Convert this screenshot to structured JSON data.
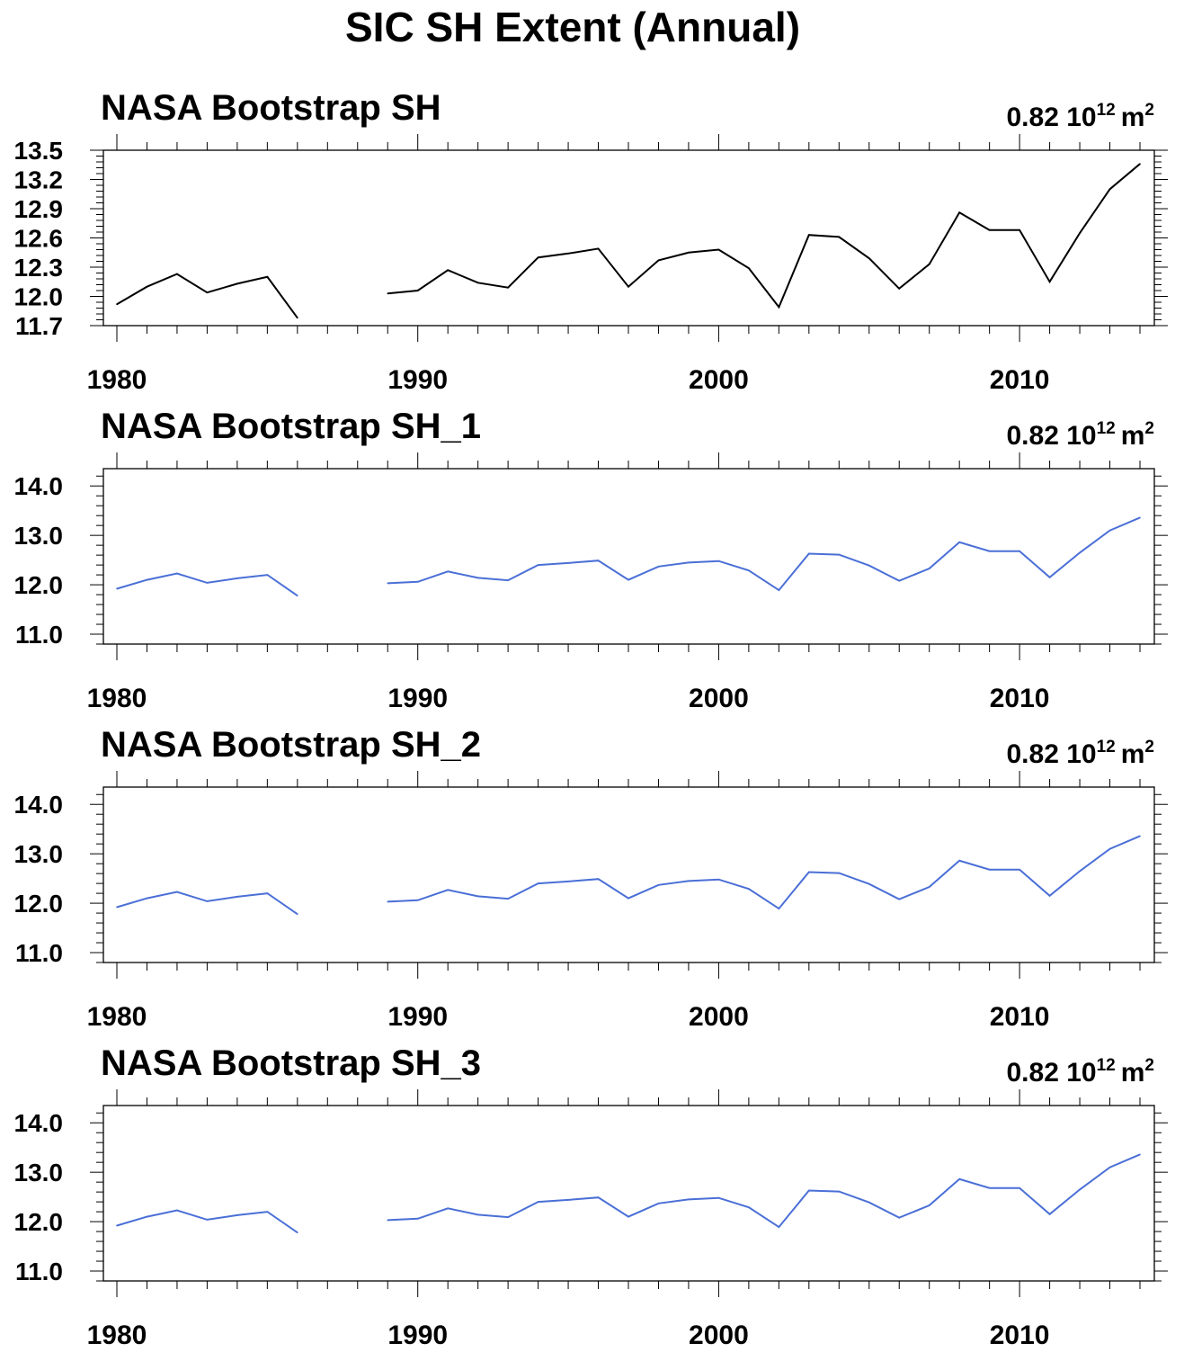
{
  "figure": {
    "title": "SIC SH Extent (Annual)"
  },
  "chart_data": [
    {
      "type": "line",
      "title": "NASA Bootstrap SH",
      "annotation": {
        "value": "0.82 10",
        "exponent": "12",
        "unit": "m",
        "unit_exponent": "2"
      },
      "xlim": [
        1980,
        2014
      ],
      "ylim": [
        11.7,
        13.5
      ],
      "xticks": [
        1980,
        1990,
        2000,
        2010
      ],
      "yticks": [
        "11.7",
        "12.0",
        "12.3",
        "12.6",
        "12.9",
        "13.2",
        "13.5"
      ],
      "line_color": "#000000",
      "x": [
        1980,
        1981,
        1982,
        1983,
        1984,
        1985,
        1986,
        1987,
        1988,
        1989,
        1990,
        1991,
        1992,
        1993,
        1994,
        1995,
        1996,
        1997,
        1998,
        1999,
        2000,
        2001,
        2002,
        2003,
        2004,
        2005,
        2006,
        2007,
        2008,
        2009,
        2010,
        2011,
        2012,
        2013,
        2014
      ],
      "values": [
        11.92,
        12.1,
        12.23,
        12.04,
        12.13,
        12.2,
        11.78,
        null,
        null,
        12.03,
        12.06,
        12.27,
        12.14,
        12.09,
        12.4,
        12.44,
        12.49,
        12.1,
        12.37,
        12.45,
        12.48,
        12.29,
        11.89,
        12.63,
        12.61,
        12.39,
        12.08,
        12.33,
        12.86,
        12.68,
        12.68,
        12.15,
        12.65,
        13.1,
        13.36
      ]
    },
    {
      "type": "line",
      "title": "NASA Bootstrap SH_1",
      "annotation": {
        "value": "0.82 10",
        "exponent": "12",
        "unit": "m",
        "unit_exponent": "2"
      },
      "xlim": [
        1980,
        2014
      ],
      "ylim": [
        10.8,
        14.35
      ],
      "xticks": [
        1980,
        1990,
        2000,
        2010
      ],
      "yticks": [
        "11.0",
        "12.0",
        "13.0",
        "14.0"
      ],
      "line_color": "#4a6fd6",
      "x": [
        1980,
        1981,
        1982,
        1983,
        1984,
        1985,
        1986,
        1987,
        1988,
        1989,
        1990,
        1991,
        1992,
        1993,
        1994,
        1995,
        1996,
        1997,
        1998,
        1999,
        2000,
        2001,
        2002,
        2003,
        2004,
        2005,
        2006,
        2007,
        2008,
        2009,
        2010,
        2011,
        2012,
        2013,
        2014
      ],
      "values": [
        11.92,
        12.1,
        12.23,
        12.04,
        12.13,
        12.2,
        11.78,
        null,
        null,
        12.03,
        12.06,
        12.27,
        12.14,
        12.09,
        12.4,
        12.44,
        12.49,
        12.1,
        12.37,
        12.45,
        12.48,
        12.29,
        11.89,
        12.63,
        12.61,
        12.39,
        12.08,
        12.33,
        12.86,
        12.68,
        12.68,
        12.15,
        12.65,
        13.1,
        13.36
      ]
    },
    {
      "type": "line",
      "title": "NASA Bootstrap SH_2",
      "annotation": {
        "value": "0.82 10",
        "exponent": "12",
        "unit": "m",
        "unit_exponent": "2"
      },
      "xlim": [
        1980,
        2014
      ],
      "ylim": [
        10.8,
        14.35
      ],
      "xticks": [
        1980,
        1990,
        2000,
        2010
      ],
      "yticks": [
        "11.0",
        "12.0",
        "13.0",
        "14.0"
      ],
      "line_color": "#4a6fd6",
      "x": [
        1980,
        1981,
        1982,
        1983,
        1984,
        1985,
        1986,
        1987,
        1988,
        1989,
        1990,
        1991,
        1992,
        1993,
        1994,
        1995,
        1996,
        1997,
        1998,
        1999,
        2000,
        2001,
        2002,
        2003,
        2004,
        2005,
        2006,
        2007,
        2008,
        2009,
        2010,
        2011,
        2012,
        2013,
        2014
      ],
      "values": [
        11.92,
        12.1,
        12.23,
        12.04,
        12.13,
        12.2,
        11.78,
        null,
        null,
        12.03,
        12.06,
        12.27,
        12.14,
        12.09,
        12.4,
        12.44,
        12.49,
        12.1,
        12.37,
        12.45,
        12.48,
        12.29,
        11.89,
        12.63,
        12.61,
        12.39,
        12.08,
        12.33,
        12.86,
        12.68,
        12.68,
        12.15,
        12.65,
        13.1,
        13.36
      ]
    },
    {
      "type": "line",
      "title": "NASA Bootstrap SH_3",
      "annotation": {
        "value": "0.82 10",
        "exponent": "12",
        "unit": "m",
        "unit_exponent": "2"
      },
      "xlim": [
        1980,
        2014
      ],
      "ylim": [
        10.8,
        14.35
      ],
      "xticks": [
        1980,
        1990,
        2000,
        2010
      ],
      "yticks": [
        "11.0",
        "12.0",
        "13.0",
        "14.0"
      ],
      "line_color": "#4a6fd6",
      "x": [
        1980,
        1981,
        1982,
        1983,
        1984,
        1985,
        1986,
        1987,
        1988,
        1989,
        1990,
        1991,
        1992,
        1993,
        1994,
        1995,
        1996,
        1997,
        1998,
        1999,
        2000,
        2001,
        2002,
        2003,
        2004,
        2005,
        2006,
        2007,
        2008,
        2009,
        2010,
        2011,
        2012,
        2013,
        2014
      ],
      "values": [
        11.92,
        12.1,
        12.23,
        12.04,
        12.13,
        12.2,
        11.78,
        null,
        null,
        12.03,
        12.06,
        12.27,
        12.14,
        12.09,
        12.4,
        12.44,
        12.49,
        12.1,
        12.37,
        12.45,
        12.48,
        12.29,
        11.89,
        12.63,
        12.61,
        12.39,
        12.08,
        12.33,
        12.86,
        12.68,
        12.68,
        12.15,
        12.65,
        13.1,
        13.36
      ]
    }
  ]
}
